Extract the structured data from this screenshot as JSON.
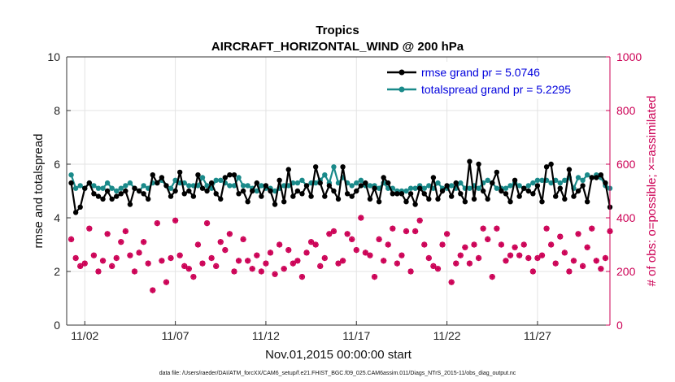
{
  "chart_data": {
    "type": "line",
    "title": "Tropics",
    "subtitle": "AIRCRAFT_HORIZONTAL_WIND @ 200 hPa",
    "xlabel": "Nov.01,2015 00:00:00 start",
    "ylabel_left": "rmse and totalspread",
    "ylabel_right": "# of obs: o=possible; ×=assimilated",
    "footnote": "data file: /Users/raeder/DAI/ATM_forcXX/CAM6_setup/f.e21.FHIST_BGC.f09_025.CAM6assim.011/Diags_NTrS_2015-11/obs_diag_output.nc",
    "x_range_days": [
      0,
      30
    ],
    "ylim_left": [
      0,
      10
    ],
    "yticks_left": [
      "0",
      "2",
      "4",
      "6",
      "8",
      "10"
    ],
    "ylim_right": [
      0,
      1000
    ],
    "yticks_right": [
      "0",
      "200",
      "400",
      "600",
      "800",
      "1000"
    ],
    "xticks": [
      {
        "label": "11/02",
        "day": 1
      },
      {
        "label": "11/07",
        "day": 6
      },
      {
        "label": "11/12",
        "day": 11
      },
      {
        "label": "11/17",
        "day": 16
      },
      {
        "label": "11/22",
        "day": 21
      },
      {
        "label": "11/27",
        "day": 26
      }
    ],
    "legend": [
      {
        "label": "rmse grand pr = 5.0746",
        "color": "#000000"
      },
      {
        "label": "totalspread grand pr = 5.2295",
        "color": "#1a8a8a"
      }
    ],
    "colors": {
      "rmse": "#000000",
      "totalspread": "#1a8a8a",
      "obs": "#cc0055",
      "right_axis": "#cc0055",
      "legend_text": "#0000dd"
    },
    "x_days": [
      0.25,
      0.5,
      0.75,
      1.0,
      1.25,
      1.5,
      1.75,
      2.0,
      2.25,
      2.5,
      2.75,
      3.0,
      3.25,
      3.5,
      3.75,
      4.0,
      4.25,
      4.5,
      4.75,
      5.0,
      5.25,
      5.5,
      5.75,
      6.0,
      6.25,
      6.5,
      6.75,
      7.0,
      7.25,
      7.5,
      7.75,
      8.0,
      8.25,
      8.5,
      8.75,
      9.0,
      9.25,
      9.5,
      9.75,
      10.0,
      10.25,
      10.5,
      10.75,
      11.0,
      11.25,
      11.5,
      11.75,
      12.0,
      12.25,
      12.5,
      12.75,
      13.0,
      13.25,
      13.5,
      13.75,
      14.0,
      14.25,
      14.5,
      14.75,
      15.0,
      15.25,
      15.5,
      15.75,
      16.0,
      16.25,
      16.5,
      16.75,
      17.0,
      17.25,
      17.5,
      17.75,
      18.0,
      18.25,
      18.5,
      18.75,
      19.0,
      19.25,
      19.5,
      19.75,
      20.0,
      20.25,
      20.5,
      20.75,
      21.0,
      21.25,
      21.5,
      21.75,
      22.0,
      22.25,
      22.5,
      22.75,
      23.0,
      23.25,
      23.5,
      23.75,
      24.0,
      24.25,
      24.5,
      24.75,
      25.0,
      25.25,
      25.5,
      25.75,
      26.0,
      26.25,
      26.5,
      26.75,
      27.0,
      27.25,
      27.5,
      27.75,
      28.0,
      28.25,
      28.5,
      28.75,
      29.0,
      29.25,
      29.5,
      29.75,
      30.0
    ],
    "series": [
      {
        "name": "rmse",
        "values": [
          5.3,
          4.2,
          4.4,
          5.1,
          5.3,
          4.9,
          4.8,
          4.7,
          5.0,
          4.7,
          4.8,
          4.9,
          5.0,
          4.5,
          5.1,
          5.0,
          4.9,
          4.7,
          5.6,
          5.3,
          5.5,
          5.2,
          4.8,
          5.0,
          5.7,
          4.9,
          5.0,
          4.8,
          5.6,
          5.1,
          5.0,
          5.3,
          4.9,
          4.7,
          5.5,
          5.6,
          5.6,
          4.9,
          5.0,
          4.6,
          5.0,
          5.3,
          4.8,
          5.2,
          5.0,
          4.5,
          5.4,
          4.6,
          5.8,
          4.8,
          5.0,
          4.9,
          5.2,
          4.8,
          5.9,
          5.3,
          4.8,
          5.2,
          5.0,
          4.7,
          5.9,
          4.9,
          4.8,
          5.0,
          5.2,
          5.3,
          4.7,
          5.1,
          4.6,
          5.5,
          5.3,
          4.9,
          4.9,
          4.9,
          4.6,
          4.9,
          4.5,
          5.1,
          4.9,
          4.7,
          5.5,
          4.7,
          5.0,
          5.2,
          4.8,
          5.3,
          4.9,
          4.6,
          6.1,
          4.7,
          6.0,
          5.0,
          4.7,
          5.3,
          5.7,
          5.0,
          4.9,
          4.6,
          5.4,
          4.8,
          5.1,
          5.0,
          4.9,
          5.2,
          4.6,
          5.9,
          6.0,
          4.8,
          5.1,
          4.7,
          5.8,
          4.8,
          5.0,
          5.2,
          4.6,
          5.5,
          5.5,
          5.6,
          5.3,
          4.4
        ]
      },
      {
        "name": "totalspread",
        "values": [
          5.6,
          5.1,
          5.2,
          5.1,
          5.3,
          5.2,
          5.1,
          5.1,
          5.3,
          5.1,
          5.0,
          5.1,
          5.2,
          5.3,
          5.1,
          5.0,
          5.2,
          5.1,
          5.3,
          5.3,
          5.4,
          5.2,
          5.1,
          5.4,
          5.3,
          5.3,
          5.2,
          5.2,
          5.2,
          5.5,
          5.2,
          5.1,
          5.4,
          5.4,
          5.3,
          5.2,
          5.2,
          5.5,
          5.2,
          5.2,
          5.1,
          5.0,
          5.2,
          5.1,
          5.1,
          5.0,
          5.1,
          5.2,
          5.2,
          5.3,
          5.3,
          5.4,
          5.2,
          5.3,
          5.3,
          5.4,
          5.6,
          5.3,
          5.9,
          5.3,
          5.5,
          5.3,
          5.2,
          5.3,
          5.4,
          5.2,
          5.2,
          5.2,
          5.1,
          5.3,
          5.1,
          5.1,
          5.0,
          5.0,
          5.0,
          5.1,
          5.1,
          5.2,
          5.1,
          5.2,
          5.1,
          5.3,
          5.1,
          5.1,
          5.2,
          5.1,
          5.3,
          5.1,
          5.1,
          5.2,
          5.1,
          5.3,
          5.4,
          5.3,
          5.1,
          5.1,
          5.1,
          5.2,
          5.3,
          5.2,
          5.1,
          5.2,
          5.3,
          5.4,
          5.4,
          5.4,
          5.3,
          5.4,
          5.3,
          5.4,
          5.5,
          5.1,
          5.5,
          5.4,
          5.6,
          5.5,
          5.6,
          5.5,
          5.2,
          5.1
        ]
      },
      {
        "name": "obs_possible",
        "values": [
          320,
          250,
          220,
          230,
          360,
          260,
          200,
          240,
          340,
          220,
          250,
          310,
          350,
          260,
          200,
          270,
          310,
          230,
          130,
          380,
          240,
          160,
          250,
          390,
          260,
          220,
          210,
          180,
          300,
          230,
          380,
          250,
          220,
          310,
          280,
          340,
          200,
          240,
          320,
          240,
          210,
          260,
          200,
          230,
          270,
          190,
          300,
          210,
          280,
          230,
          240,
          180,
          270,
          310,
          300,
          220,
          250,
          340,
          350,
          230,
          240,
          340,
          320,
          280,
          400,
          270,
          260,
          180,
          320,
          240,
          300,
          360,
          230,
          260,
          350,
          200,
          350,
          390,
          300,
          250,
          220,
          210,
          300,
          340,
          160,
          230,
          260,
          290,
          230,
          300,
          250,
          360,
          320,
          180,
          360,
          300,
          240,
          260,
          290,
          260,
          300,
          250,
          200,
          250,
          260,
          360,
          300,
          230,
          330,
          270,
          200,
          240,
          340,
          220,
          290,
          360,
          240,
          210,
          250,
          350
        ]
      },
      {
        "name": "obs_assimilated",
        "values": [
          320,
          250,
          220,
          230,
          360,
          260,
          200,
          240,
          340,
          220,
          250,
          310,
          350,
          260,
          200,
          270,
          310,
          230,
          130,
          380,
          240,
          160,
          250,
          390,
          260,
          220,
          210,
          180,
          300,
          230,
          380,
          250,
          220,
          310,
          280,
          340,
          200,
          240,
          320,
          240,
          210,
          260,
          200,
          230,
          270,
          190,
          300,
          210,
          280,
          230,
          240,
          180,
          270,
          310,
          300,
          220,
          250,
          340,
          350,
          230,
          240,
          340,
          320,
          280,
          400,
          270,
          260,
          180,
          320,
          240,
          300,
          360,
          230,
          260,
          350,
          200,
          350,
          390,
          300,
          250,
          220,
          210,
          300,
          340,
          160,
          230,
          260,
          290,
          230,
          300,
          250,
          360,
          320,
          180,
          360,
          300,
          240,
          260,
          290,
          260,
          300,
          250,
          200,
          250,
          260,
          360,
          300,
          230,
          330,
          270,
          200,
          240,
          340,
          220,
          290,
          360,
          240,
          210,
          250,
          350
        ]
      }
    ]
  }
}
